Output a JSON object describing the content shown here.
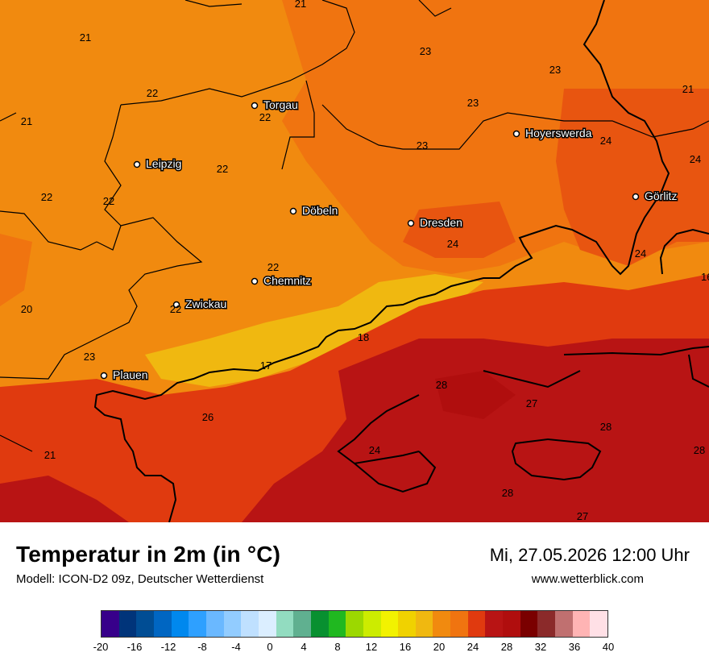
{
  "colors": {
    "c20": "#f18a0f",
    "c22": "#f07410",
    "c24": "#e85510",
    "c26": "#e03a0f",
    "c28": "#b81414",
    "cool": "#f0b810",
    "border": "#000000"
  },
  "cities": [
    {
      "name": "Torgau"
    },
    {
      "name": "Leipzig"
    },
    {
      "name": "Hoyerswerda"
    },
    {
      "name": "Görlitz"
    },
    {
      "name": "Döbeln"
    },
    {
      "name": "Dresden"
    },
    {
      "name": "Chemnitz"
    },
    {
      "name": "Zwickau"
    },
    {
      "name": "Plauen"
    }
  ],
  "temperatures": [
    "21",
    "21",
    "23",
    "23",
    "21",
    "22",
    "22",
    "23",
    "21",
    "23",
    "24",
    "22",
    "22",
    "22",
    "24",
    "22",
    "24",
    "22",
    "24",
    "16",
    "20",
    "22",
    "18",
    "23",
    "17",
    "28",
    "27",
    "26",
    "28",
    "21",
    "24",
    "28",
    "28",
    "27"
  ],
  "footer": {
    "title": "Temperatur in 2m (in °C)",
    "subtitle": "Modell: ICON-D2 09z, Deutscher Wetterdienst",
    "datetime": "Mi, 27.05.2026 12:00 Uhr",
    "website": "www.wetterblick.com"
  },
  "legend": {
    "colors": [
      "#37008a",
      "#00347a",
      "#004d94",
      "#0066c2",
      "#0088ee",
      "#2ea0ff",
      "#6ab8ff",
      "#92ccff",
      "#bfe0ff",
      "#dbeeff",
      "#92dcc0",
      "#60b090",
      "#089030",
      "#20b820",
      "#9cd800",
      "#ccec00",
      "#f2f200",
      "#f0d200",
      "#f0b810",
      "#f18a0f",
      "#f07410",
      "#e03a0f",
      "#b81414",
      "#b00e0e",
      "#7a0000",
      "#8b2a2a",
      "#c07070",
      "#ffb4b4",
      "#ffe0e6"
    ],
    "ticks": [
      "-20",
      "-16",
      "-12",
      "-8",
      "-4",
      "0",
      "4",
      "8",
      "12",
      "16",
      "20",
      "24",
      "28",
      "32",
      "36",
      "40"
    ]
  }
}
